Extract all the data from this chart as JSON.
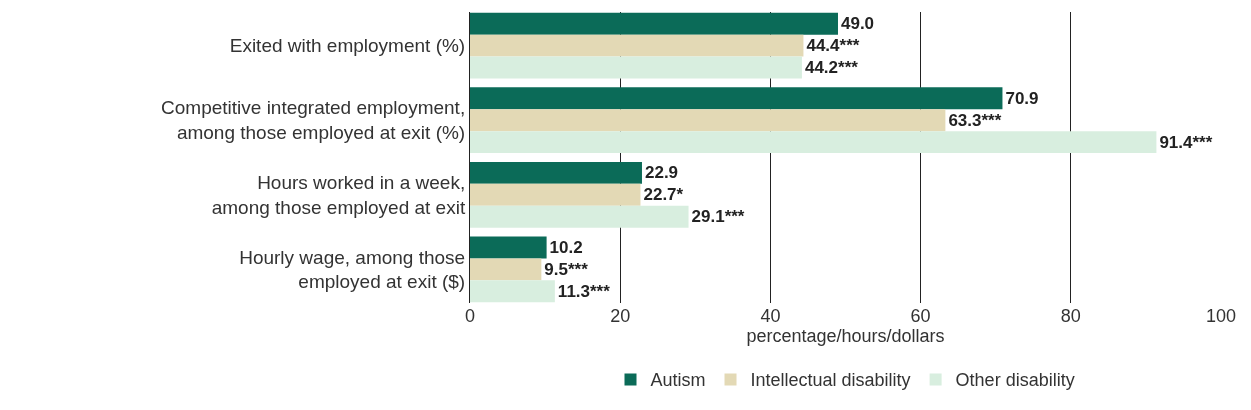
{
  "chart_data": {
    "type": "bar",
    "orientation": "horizontal",
    "xlabel": "percentage/hours/dollars",
    "categories": [
      "Exited with employment (%)",
      "Competitive integrated employment,\namong those employed at exit (%)",
      "Hours worked in a week,\namong those employed at exit",
      "Hourly wage, among those\nemployed at exit ($)"
    ],
    "series": [
      {
        "name": "Autism",
        "color": "#0b6b58",
        "values": [
          49.0,
          70.9,
          22.9,
          10.2
        ],
        "value_labels": [
          "49.0",
          "70.9",
          "22.9",
          "10.2"
        ]
      },
      {
        "name": "Intellectual disability",
        "color": "#e3d9b5",
        "values": [
          44.4,
          63.3,
          22.7,
          9.5
        ],
        "value_labels": [
          "44.4***",
          "63.3***",
          "22.7*",
          "9.5***"
        ]
      },
      {
        "name": "Other disability",
        "color": "#d8eedf",
        "values": [
          44.2,
          91.4,
          29.1,
          11.3
        ],
        "value_labels": [
          "44.2***",
          "91.4***",
          "29.1***",
          "11.3***"
        ]
      }
    ],
    "xlim": [
      0,
      100
    ],
    "xticks": [
      0,
      20,
      40,
      60,
      80,
      100
    ],
    "grid": "x",
    "legend": "bottom"
  }
}
